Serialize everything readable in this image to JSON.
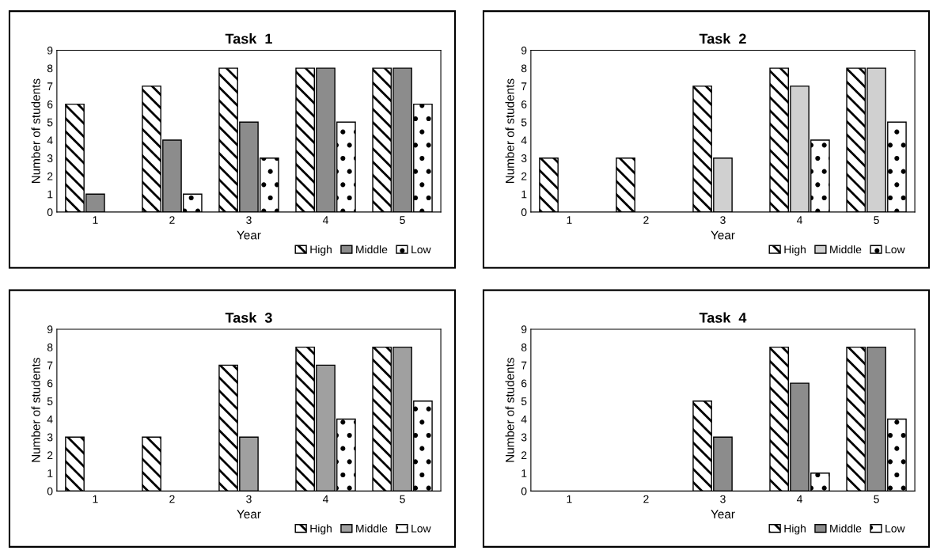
{
  "chart_data": [
    {
      "type": "bar",
      "title": "Task  1",
      "xlabel": "Year",
      "ylabel": "Number of students",
      "categories": [
        "1",
        "2",
        "3",
        "4",
        "5"
      ],
      "ylim": [
        0,
        9
      ],
      "yticks": [
        0,
        1,
        2,
        3,
        4,
        5,
        6,
        7,
        8,
        9
      ],
      "legend": "bottom right",
      "series": [
        {
          "name": "High",
          "color": "#000000",
          "values": [
            6,
            7,
            8,
            8,
            8
          ]
        },
        {
          "name": "Middle",
          "color": "#8c8c8c",
          "values": [
            1,
            4,
            5,
            8,
            8
          ]
        },
        {
          "name": "Low",
          "color": "#000000",
          "values": [
            null,
            1,
            3,
            5,
            6
          ]
        }
      ]
    },
    {
      "type": "bar",
      "title": "Task  2",
      "xlabel": "Year",
      "ylabel": "Number of students",
      "categories": [
        "1",
        "2",
        "3",
        "4",
        "5"
      ],
      "ylim": [
        0,
        9
      ],
      "yticks": [
        0,
        1,
        2,
        3,
        4,
        5,
        6,
        7,
        8,
        9
      ],
      "legend": "bottom right",
      "series": [
        {
          "name": "High",
          "color": "#000000",
          "values": [
            3,
            3,
            7,
            8,
            8
          ]
        },
        {
          "name": "Middle",
          "color": "#d0d0d0",
          "values": [
            null,
            null,
            3,
            7,
            8
          ]
        },
        {
          "name": "Low",
          "color": "#000000",
          "values": [
            null,
            null,
            null,
            4,
            5
          ]
        }
      ]
    },
    {
      "type": "bar",
      "title": "Task  3",
      "xlabel": "Year",
      "ylabel": "Number of students",
      "categories": [
        "1",
        "2",
        "3",
        "4",
        "5"
      ],
      "ylim": [
        0,
        9
      ],
      "yticks": [
        0,
        1,
        2,
        3,
        4,
        5,
        6,
        7,
        8,
        9
      ],
      "legend": "bottom right",
      "series": [
        {
          "name": "High",
          "color": "#000000",
          "values": [
            3,
            3,
            7,
            8,
            8
          ]
        },
        {
          "name": "Middle",
          "color": "#a0a0a0",
          "values": [
            null,
            null,
            3,
            7,
            8
          ]
        },
        {
          "name": "Low",
          "color": "#000000",
          "values": [
            null,
            null,
            null,
            4,
            5
          ]
        }
      ]
    },
    {
      "type": "bar",
      "title": "Task  4",
      "xlabel": "Year",
      "ylabel": "Number of students",
      "categories": [
        "1",
        "2",
        "3",
        "4",
        "5"
      ],
      "ylim": [
        0,
        9
      ],
      "yticks": [
        0,
        1,
        2,
        3,
        4,
        5,
        6,
        7,
        8,
        9
      ],
      "legend": "bottom right",
      "series": [
        {
          "name": "High",
          "color": "#000000",
          "values": [
            null,
            null,
            5,
            8,
            8
          ]
        },
        {
          "name": "Middle",
          "color": "#8c8c8c",
          "values": [
            null,
            null,
            3,
            6,
            8
          ]
        },
        {
          "name": "Low",
          "color": "#000000",
          "values": [
            null,
            null,
            null,
            1,
            4
          ]
        }
      ]
    }
  ]
}
